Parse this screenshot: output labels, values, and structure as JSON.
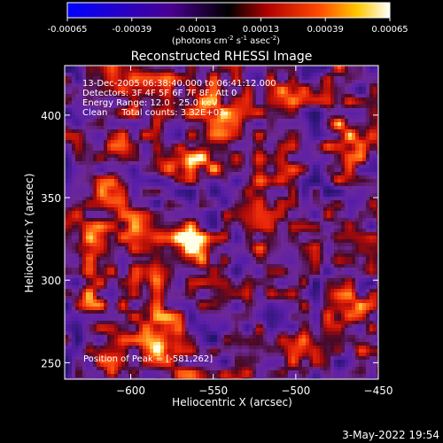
{
  "chart_data": {
    "type": "heatmap",
    "title": "Reconstructed RHESSI Image",
    "colorbar": {
      "ticks": [
        "-0.00065",
        "-0.00039",
        "-0.00013",
        "0.00013",
        "0.00039",
        "0.00065"
      ],
      "range": [
        -0.00065,
        0.00065
      ],
      "unit_label": "(photons cm",
      "unit_sup1": "-2",
      "unit_s": " s",
      "unit_sup2": "-1",
      "unit_asec": " asec",
      "unit_sup3": "-2",
      "unit_close": ")"
    },
    "xlabel": "Heliocentric X (arcsec)",
    "ylabel": "Heliocentric Y (arcsec)",
    "xlim": [
      -640,
      -450
    ],
    "ylim": [
      240,
      430
    ],
    "xticks": [
      -600,
      -550,
      -500,
      -450
    ],
    "yticks": [
      250,
      300,
      350,
      400
    ],
    "annotations": {
      "line1": "13-Dec-2005 06:38:40.000 to 06:41:12.000",
      "line2": "Detectors: 3F 4F 5F 6F 7F 8F, Att 0",
      "line3": "Energy Range: 12.0 - 25.0 keV",
      "line4": "Clean     Total counts: 3.32E+03",
      "peak": "Position of Peak = [-581,262]"
    },
    "peak_position": [
      -581,
      262
    ],
    "sources": [
      {
        "x": -581,
        "y": 262,
        "intensity": 1.0
      },
      {
        "x": -596,
        "y": 332,
        "intensity": 0.7
      },
      {
        "x": -612,
        "y": 352,
        "intensity": 0.65
      },
      {
        "x": -562,
        "y": 375,
        "intensity": 0.7
      },
      {
        "x": -576,
        "y": 368,
        "intensity": 0.75
      },
      {
        "x": -548,
        "y": 398,
        "intensity": 0.6
      },
      {
        "x": -588,
        "y": 302,
        "intensity": 0.55
      },
      {
        "x": -532,
        "y": 372,
        "intensity": 0.5
      },
      {
        "x": -624,
        "y": 290,
        "intensity": 0.45
      },
      {
        "x": -470,
        "y": 385,
        "intensity": 0.6
      },
      {
        "x": -463,
        "y": 286,
        "intensity": 0.55
      },
      {
        "x": -500,
        "y": 260,
        "intensity": 0.55
      },
      {
        "x": -525,
        "y": 255,
        "intensity": 0.5
      },
      {
        "x": -612,
        "y": 255,
        "intensity": 0.45
      },
      {
        "x": -545,
        "y": 290,
        "intensity": 0.4
      },
      {
        "x": -565,
        "y": 322,
        "intensity": 0.6
      },
      {
        "x": -620,
        "y": 320,
        "intensity": 0.45
      }
    ]
  },
  "footer": {
    "date": "3-May-2022 19:54"
  }
}
